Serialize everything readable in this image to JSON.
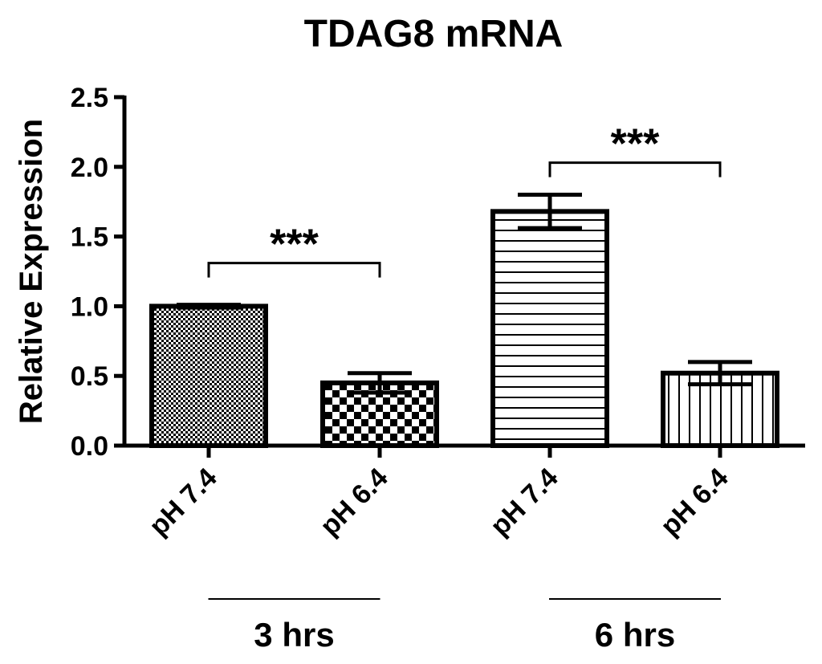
{
  "chart_data": {
    "type": "bar",
    "title": "TDAG8 mRNA",
    "xlabel": "",
    "ylabel": "Relative Expression",
    "ylim": [
      0,
      2.5
    ],
    "yticks": [
      "0.0",
      "0.5",
      "1.0",
      "1.5",
      "2.0",
      "2.5"
    ],
    "grid": false,
    "categories": [
      "pH 7.4",
      "pH 6.4",
      "pH 7.4",
      "pH 6.4"
    ],
    "values": [
      1.0,
      0.45,
      1.68,
      0.52
    ],
    "error": [
      0.01,
      0.07,
      0.12,
      0.08
    ],
    "patterns": [
      "fine-checker",
      "checker",
      "horizontal-lines",
      "vertical-lines"
    ],
    "groups": [
      {
        "label": "3 hrs",
        "categories": [
          0,
          1
        ]
      },
      {
        "label": "6 hrs",
        "categories": [
          2,
          3
        ]
      }
    ],
    "significance": [
      {
        "from": 0,
        "to": 1,
        "label": "***",
        "y": 1.31
      },
      {
        "from": 2,
        "to": 3,
        "label": "***",
        "y": 2.03
      }
    ],
    "colors": {
      "bar_stroke": "#000000",
      "bar_fill": "#ffffff",
      "axis": "#000000"
    }
  }
}
